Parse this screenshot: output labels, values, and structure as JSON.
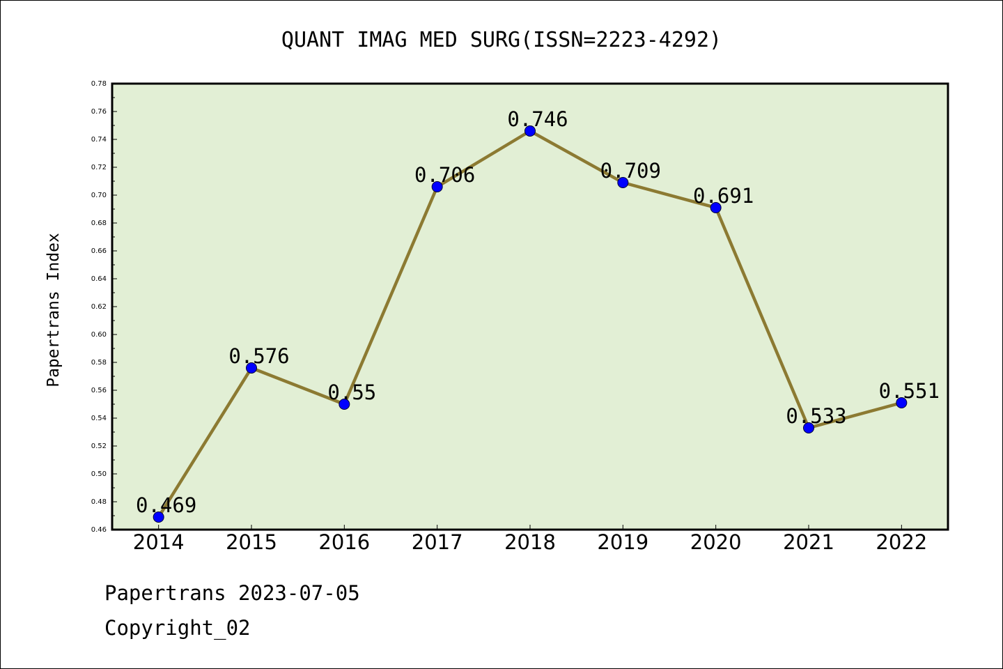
{
  "chart_data": {
    "type": "line",
    "title": "QUANT IMAG MED SURG(ISSN=2223-4292)",
    "ylabel": "Papertrans Index",
    "xlabel": "",
    "categories": [
      "2014",
      "2015",
      "2016",
      "2017",
      "2018",
      "2019",
      "2020",
      "2021",
      "2022"
    ],
    "values": [
      0.469,
      0.576,
      0.55,
      0.706,
      0.746,
      0.709,
      0.691,
      0.533,
      0.551
    ],
    "data_labels": [
      "0.469",
      "0.576",
      "0.55",
      "0.706",
      "0.746",
      "0.709",
      "0.691",
      "0.533",
      "0.551"
    ],
    "ylim": [
      0.46,
      0.78
    ],
    "yticks": [
      "0.46",
      "0.48",
      "0.50",
      "0.52",
      "0.54",
      "0.56",
      "0.58",
      "0.60",
      "0.62",
      "0.64",
      "0.66",
      "0.68",
      "0.70",
      "0.72",
      "0.74",
      "0.76",
      "0.78"
    ],
    "grid": false,
    "legend": "none",
    "colors": {
      "plot_background": "#e2efd5",
      "line": "#8c7a32",
      "marker": "#0000ff"
    }
  },
  "footer": {
    "source": "Papertrans 2023-07-05",
    "copyright": "Copyright_02"
  }
}
